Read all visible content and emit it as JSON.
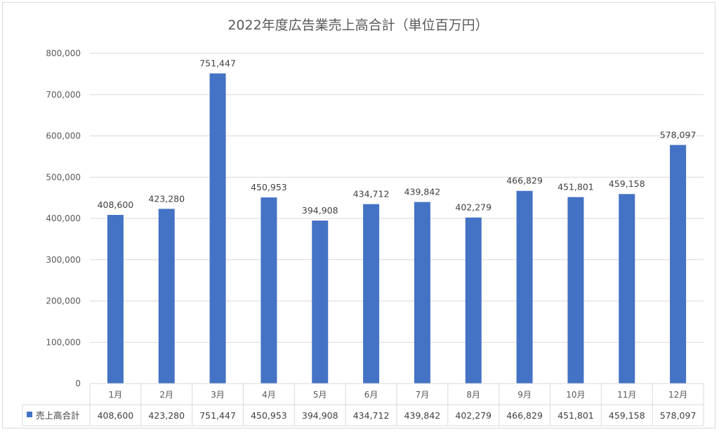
{
  "chart_data": {
    "type": "bar",
    "title": "2022年度広告業売上高合計（単位百万円）",
    "categories": [
      "1月",
      "2月",
      "3月",
      "4月",
      "5月",
      "6月",
      "7月",
      "8月",
      "9月",
      "10月",
      "11月",
      "12月"
    ],
    "series": [
      {
        "name": "売上高合計",
        "color": "#4472c4",
        "values": [
          408600,
          423280,
          751447,
          450953,
          394908,
          434712,
          439842,
          402279,
          466829,
          451801,
          459158,
          578097
        ],
        "labels": [
          "408,600",
          "423,280",
          "751,447",
          "450,953",
          "394,908",
          "434,712",
          "439,842",
          "402,279",
          "466,829",
          "451,801",
          "459,158",
          "578,097"
        ]
      }
    ],
    "ylim": [
      0,
      800000
    ],
    "yticks": [
      0,
      100000,
      200000,
      300000,
      400000,
      500000,
      600000,
      700000,
      800000
    ],
    "ytick_labels": [
      "0",
      "100,000",
      "200,000",
      "300,000",
      "400,000",
      "500,000",
      "600,000",
      "700,000",
      "800,000"
    ],
    "grid": true,
    "data_table": true,
    "legend_position": "data-table-left"
  }
}
